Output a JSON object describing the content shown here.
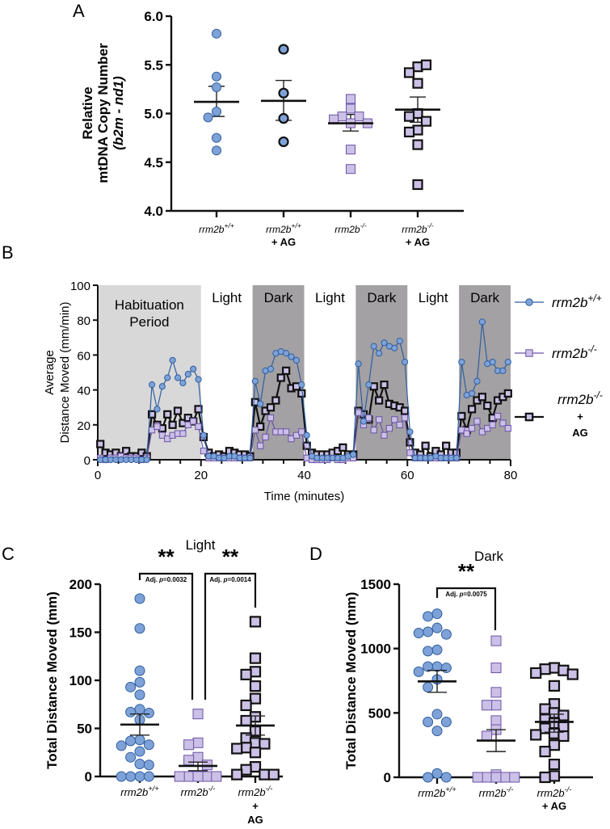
{
  "figure": {
    "panel_labels": [
      "A",
      "B",
      "C",
      "D"
    ]
  },
  "colors": {
    "wt_fill": "#7ea2d8",
    "wt_stroke": "#2f5e9e",
    "ko_fill": "#cbc0e6",
    "ko_stroke": "#6b52a6",
    "koag_fill": "#cbc0e6",
    "koag_stroke": "#111111",
    "habituation_shade": "#d9d8d8",
    "dark_shade": "#a3a1a4",
    "axis": "#111111"
  },
  "chart_data": [
    {
      "panel": "A",
      "type": "scatter",
      "ylabel_lines": [
        "Relative",
        "mtDNA Copy Number",
        "(b2m - nd1)"
      ],
      "ylim": [
        4.0,
        6.0
      ],
      "yticks": [
        "4.0",
        "4.5",
        "5.0",
        "5.5",
        "6.0"
      ],
      "yticks_values": [
        4.0,
        4.5,
        5.0,
        5.5,
        6.0
      ],
      "groups": [
        {
          "label": "rrm2b",
          "sup": "+/+",
          "sub": "",
          "marker": "circle",
          "style": "wt",
          "values": [
            5.82,
            5.38,
            5.27,
            5.02,
            4.96,
            4.75,
            4.62
          ],
          "mean": 5.12,
          "sem_low": 4.97,
          "sem_high": 5.28
        },
        {
          "label": "rrm2b",
          "sup": "+/+",
          "sub": "+ AG",
          "marker": "circle",
          "style": "wtag",
          "values": [
            5.66,
            5.21,
            4.95,
            4.71
          ],
          "mean": 5.13,
          "sem_low": 4.93,
          "sem_high": 5.34
        },
        {
          "label": "rrm2b",
          "sup": "-/-",
          "sub": "",
          "marker": "square",
          "style": "ko",
          "values": [
            5.15,
            5.05,
            4.97,
            4.97,
            4.9,
            4.94,
            4.9,
            4.63,
            4.43
          ],
          "mean": 4.9,
          "sem_low": 4.82,
          "sem_high": 4.99
        },
        {
          "label": "rrm2b",
          "sup": "-/-",
          "sub": "+ AG",
          "marker": "square",
          "style": "koag",
          "values": [
            5.48,
            5.42,
            5.5,
            5.31,
            5.0,
            4.97,
            4.92,
            4.83,
            4.81,
            4.68,
            4.27
          ],
          "mean": 5.04,
          "sem_low": 4.91,
          "sem_high": 5.17
        }
      ]
    },
    {
      "panel": "B",
      "type": "line",
      "xlabel": "Time (minutes)",
      "ylabel_lines": [
        "Average",
        "Distance Moved (mm/min)"
      ],
      "xlim": [
        0,
        80
      ],
      "ylim": [
        0,
        100
      ],
      "xticks": [
        "0",
        "20",
        "40",
        "60",
        "80"
      ],
      "xticks_values": [
        0,
        20,
        40,
        60,
        80
      ],
      "yticks": [
        "0",
        "20",
        "40",
        "60",
        "80",
        "100"
      ],
      "yticks_values": [
        0,
        20,
        40,
        60,
        80,
        100
      ],
      "periods": [
        {
          "label": "Habituation Period",
          "label_lines": [
            "Habituation",
            "Period"
          ],
          "start": 0,
          "end": 20,
          "shade": "habituation"
        },
        {
          "label": "Light",
          "label_lines": [
            "Light"
          ],
          "start": 20,
          "end": 30,
          "shade": "none"
        },
        {
          "label": "Dark",
          "label_lines": [
            "Dark"
          ],
          "start": 30,
          "end": 40,
          "shade": "dark"
        },
        {
          "label": "Light",
          "label_lines": [
            "Light"
          ],
          "start": 40,
          "end": 50,
          "shade": "none"
        },
        {
          "label": "Dark",
          "label_lines": [
            "Dark"
          ],
          "start": 50,
          "end": 60,
          "shade": "dark"
        },
        {
          "label": "Light",
          "label_lines": [
            "Light"
          ],
          "start": 60,
          "end": 70,
          "shade": "none"
        },
        {
          "label": "Dark",
          "label_lines": [
            "Dark"
          ],
          "start": 70,
          "end": 80,
          "shade": "dark"
        }
      ],
      "x": [
        0,
        1,
        2,
        3,
        4,
        5,
        6,
        7,
        8,
        9,
        10,
        11,
        12,
        13,
        14,
        15,
        16,
        17,
        18,
        19,
        20,
        21,
        22,
        23,
        24,
        25,
        26,
        27,
        28,
        29,
        30,
        31,
        32,
        33,
        34,
        35,
        36,
        37,
        38,
        39,
        40,
        41,
        42,
        43,
        44,
        45,
        46,
        47,
        48,
        49,
        50,
        51,
        52,
        53,
        54,
        55,
        56,
        57,
        58,
        59,
        60,
        61,
        62,
        63,
        64,
        65,
        66,
        67,
        68,
        69,
        70,
        71,
        72,
        73,
        74,
        75,
        76,
        77,
        78,
        79
      ],
      "series": [
        {
          "name": "rrm2b+/+",
          "legend_label": "rrm2b",
          "legend_sup": "+/+",
          "legend_sub": "",
          "style": "wt",
          "marker": "circle",
          "values": [
            0,
            0,
            0,
            0,
            0,
            0,
            0,
            0,
            0,
            0,
            43,
            29,
            42,
            47,
            57,
            47,
            44,
            49,
            52,
            46,
            14,
            2,
            2,
            1,
            1,
            2,
            2,
            1,
            1,
            1,
            45,
            32,
            51,
            52,
            61,
            62,
            61,
            59,
            57,
            43,
            14,
            2,
            1,
            1,
            1,
            1,
            1,
            1,
            2,
            3,
            55,
            22,
            43,
            65,
            61,
            67,
            65,
            64,
            68,
            56,
            16,
            1,
            1,
            1,
            1,
            2,
            1,
            1,
            1,
            1,
            56,
            37,
            38,
            45,
            79,
            55,
            56,
            51,
            51,
            56
          ]
        },
        {
          "name": "rrm2b-/-",
          "legend_label": "rrm2b",
          "legend_sup": "-/-",
          "legend_sub": "",
          "style": "ko",
          "marker": "square",
          "values": [
            1,
            0,
            1,
            1,
            2,
            1,
            1,
            1,
            0,
            1,
            17,
            19,
            14,
            12,
            14,
            15,
            15,
            20,
            22,
            19,
            5,
            1,
            1,
            1,
            1,
            1,
            1,
            1,
            1,
            1,
            17,
            8,
            13,
            24,
            16,
            16,
            16,
            12,
            14,
            16,
            1,
            0,
            0,
            0,
            0,
            1,
            0,
            0,
            1,
            1,
            27,
            20,
            24,
            17,
            23,
            14,
            18,
            23,
            20,
            24,
            4,
            1,
            1,
            1,
            1,
            1,
            1,
            1,
            1,
            1,
            17,
            15,
            18,
            22,
            16,
            18,
            20,
            25,
            21,
            18
          ]
        },
        {
          "name": "rrm2b-/- + AG",
          "legend_label": "rrm2b",
          "legend_sup": "-/-",
          "legend_sub": "+ AG",
          "style": "koag",
          "marker": "square",
          "values": [
            9,
            4,
            3,
            4,
            2,
            5,
            2,
            2,
            4,
            2,
            26,
            20,
            18,
            26,
            20,
            28,
            21,
            24,
            22,
            29,
            13,
            4,
            2,
            3,
            2,
            5,
            4,
            3,
            3,
            2,
            33,
            19,
            28,
            30,
            34,
            47,
            51,
            41,
            42,
            38,
            8,
            4,
            3,
            3,
            3,
            4,
            5,
            7,
            3,
            3,
            28,
            26,
            23,
            42,
            34,
            43,
            32,
            31,
            30,
            28,
            10,
            4,
            3,
            8,
            2,
            5,
            3,
            8,
            4,
            4,
            25,
            17,
            29,
            34,
            36,
            31,
            24,
            34,
            36,
            38
          ]
        }
      ]
    },
    {
      "panel": "C",
      "type": "scatter",
      "title": "Light",
      "ylabel": "Total Distance Moved (mm)",
      "ylim": [
        0,
        200
      ],
      "yticks": [
        "0",
        "50",
        "100",
        "150",
        "200"
      ],
      "yticks_values": [
        0,
        50,
        100,
        150,
        200
      ],
      "groups": [
        {
          "label": "rrm2b",
          "sup": "+/+",
          "sub": "",
          "marker": "circle",
          "style": "wt",
          "values": [
            185,
            154,
            110,
            98,
            93,
            85,
            70,
            67,
            66,
            59,
            38,
            37,
            33,
            32,
            26,
            20,
            13,
            12,
            0,
            0,
            0,
            0
          ],
          "mean": 54,
          "sem_low": 43,
          "sem_high": 65
        },
        {
          "label": "rrm2b",
          "sup": "-/-",
          "sub": "",
          "marker": "square",
          "style": "ko",
          "values": [
            65,
            35,
            33,
            20,
            17,
            12,
            0,
            0,
            0,
            0,
            0,
            0,
            0,
            0,
            0
          ],
          "mean": 11,
          "sem_low": 6,
          "sem_high": 15
        },
        {
          "label": "rrm2b",
          "sup": "-/-",
          "sub": "+ AG",
          "marker": "square",
          "style": "koag",
          "values": [
            161,
            123,
            109,
            106,
            94,
            81,
            74,
            62,
            58,
            47,
            40,
            35,
            34,
            30,
            29,
            25,
            10,
            7,
            2,
            2,
            2
          ],
          "mean": 53,
          "sem_low": 43,
          "sem_high": 63
        }
      ],
      "comparisons": [
        {
          "from_group": 0,
          "to_group": 1,
          "stars": "**",
          "label": "Adj. p=0.0032",
          "label_prefix": "Adj. ",
          "label_p": "p",
          "label_value": "=0.0032"
        },
        {
          "from_group": 1,
          "to_group": 2,
          "stars": "**",
          "label": "Adj. p=0.0014",
          "label_prefix": "Adj. ",
          "label_p": "p",
          "label_value": "=0.0014"
        }
      ]
    },
    {
      "panel": "D",
      "type": "scatter",
      "title": "Dark",
      "ylabel": "Total Distance Moved (mm)",
      "ylim": [
        0,
        1500
      ],
      "yticks": [
        "0",
        "500",
        "1000",
        "1500"
      ],
      "yticks_values": [
        0,
        500,
        1000,
        1500
      ],
      "groups": [
        {
          "label": "rrm2b",
          "sup": "+/+",
          "sub": "",
          "marker": "circle",
          "style": "wt",
          "values": [
            1270,
            1250,
            1160,
            1130,
            1110,
            1120,
            990,
            980,
            860,
            860,
            850,
            820,
            760,
            700,
            490,
            430,
            430,
            360,
            30,
            0,
            0
          ],
          "mean": 745,
          "sem_low": 660,
          "sem_high": 830
        },
        {
          "label": "rrm2b",
          "sup": "-/-",
          "sub": "",
          "marker": "square",
          "style": "ko",
          "values": [
            1060,
            850,
            660,
            560,
            560,
            440,
            370,
            320,
            20,
            0,
            0,
            0,
            0,
            0
          ],
          "mean": 285,
          "sem_low": 200,
          "sem_high": 370
        },
        {
          "label": "rrm2b",
          "sup": "-/-",
          "sub": "+ AG",
          "marker": "square",
          "style": "koag",
          "values": [
            850,
            840,
            830,
            810,
            800,
            710,
            570,
            530,
            500,
            480,
            450,
            420,
            390,
            380,
            340,
            330,
            320,
            250,
            200,
            100,
            10,
            0
          ],
          "mean": 430,
          "sem_low": 350,
          "sem_high": 490
        }
      ],
      "comparisons": [
        {
          "from_group": 0,
          "to_group": 1,
          "stars": "**",
          "label": "Adj. p=0.0075",
          "label_prefix": "Adj. ",
          "label_p": "p",
          "label_value": "=0.0075"
        }
      ]
    }
  ]
}
